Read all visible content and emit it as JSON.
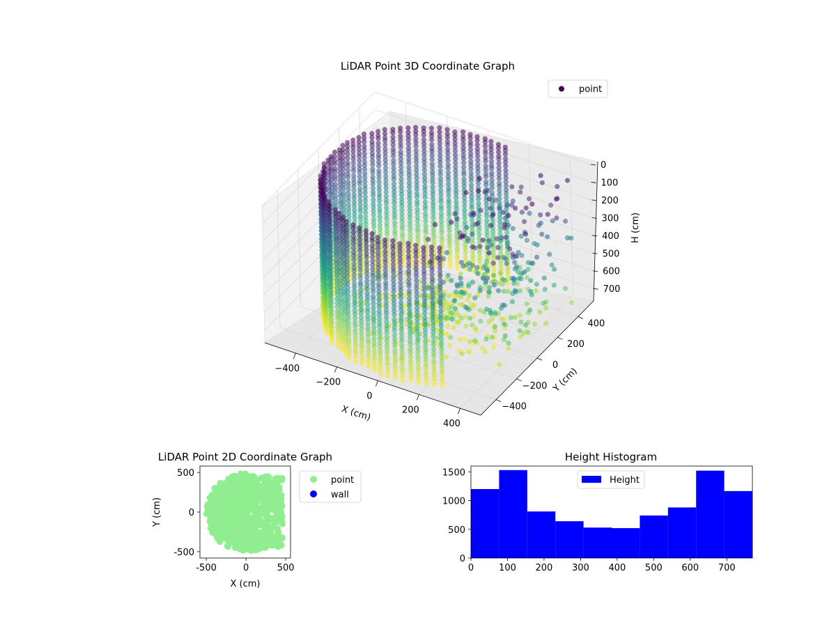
{
  "chart_data": [
    {
      "type": "scatter",
      "dimension": "3d",
      "title": "LiDAR Point 3D Coordinate Graph",
      "xlabel": "X (cm)",
      "ylabel": "Y (cm)",
      "zlabel": "H (cm)",
      "x_ticks": [
        "−400",
        "−200",
        "0",
        "200",
        "400"
      ],
      "y_ticks": [
        "−400",
        "−200",
        "0",
        "200",
        "400"
      ],
      "z_ticks": [
        "0",
        "100",
        "200",
        "300",
        "400",
        "500",
        "600",
        "700"
      ],
      "xlim": [
        -550,
        500
      ],
      "ylim": [
        -550,
        550
      ],
      "zlim": [
        0,
        770
      ],
      "z_inverted": true,
      "colormap": "viridis",
      "legend": {
        "entries": [
          "point"
        ],
        "placement": "top-right",
        "marker_color": "#440154"
      },
      "grid": true,
      "description_of_points": "cylindrical wall of vertical point columns, radius about 500 cm, spanning the full height range, opening on the +X side with scattered points inside"
    },
    {
      "type": "scatter",
      "title": "LiDAR Point 2D Coordinate Graph",
      "xlabel": "X (cm)",
      "ylabel": "Y (cm)",
      "x_ticks": [
        -500,
        0,
        500
      ],
      "y_ticks": [
        -500,
        0,
        500
      ],
      "xlim": [
        -580,
        560
      ],
      "ylim": [
        -580,
        580
      ],
      "legend": {
        "entries": [
          {
            "name": "point",
            "color": "#90ee90"
          },
          {
            "name": "wall",
            "color": "#0000ff"
          }
        ],
        "placement": "outside-right"
      }
    },
    {
      "type": "bar",
      "subtype": "histogram",
      "title": "Height Histogram",
      "bin_edges": [
        0,
        77,
        154,
        231,
        308,
        385,
        462,
        539,
        616,
        693,
        770
      ],
      "values": [
        1200,
        1530,
        810,
        640,
        530,
        520,
        740,
        880,
        1520,
        1165
      ],
      "x_ticks": [
        0,
        100,
        200,
        300,
        400,
        500,
        600,
        700
      ],
      "y_ticks": [
        0,
        500,
        1000,
        1500
      ],
      "xlim": [
        0,
        770
      ],
      "ylim": [
        0,
        1600
      ],
      "color": "#0000ff",
      "legend": {
        "entries": [
          "Height"
        ],
        "placement": "upper-center"
      }
    }
  ]
}
